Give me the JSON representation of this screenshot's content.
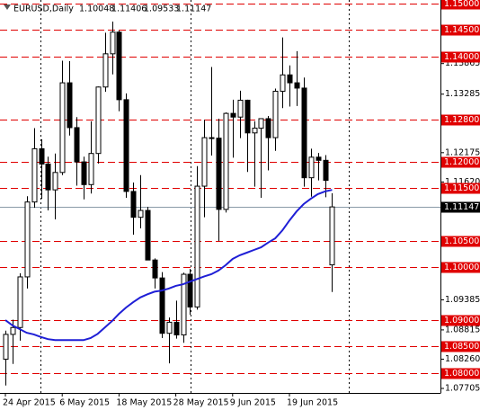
{
  "chart_data": {
    "type": "candlestick",
    "symbol": "EURUSD,Daily",
    "ohlc_header": [
      1.10048,
      1.11406,
      1.09533,
      1.11147
    ],
    "categories": [
      "24 Apr 2015",
      null,
      null,
      null,
      null,
      null,
      null,
      null,
      "6 May 2015",
      null,
      null,
      null,
      null,
      null,
      null,
      null,
      "18 May 2015",
      null,
      null,
      null,
      null,
      null,
      null,
      null,
      "28 May 2015",
      null,
      null,
      null,
      null,
      null,
      null,
      null,
      "9 Jun 2015",
      null,
      null,
      null,
      null,
      null,
      null,
      null,
      "19 Jun 2015",
      null,
      null,
      null,
      null,
      null,
      null
    ],
    "open": [
      1.0826,
      1.0873,
      1.0886,
      1.0982,
      1.1124,
      1.1225,
      1.1196,
      1.1147,
      1.118,
      1.135,
      1.1265,
      1.12,
      1.1157,
      1.1216,
      1.1342,
      1.1405,
      1.1446,
      1.1318,
      1.1144,
      1.1095,
      1.1108,
      1.1014,
      1.098,
      1.0875,
      1.0896,
      1.0872,
      1.0987,
      1.0925,
      1.1154,
      1.1246,
      1.1245,
      1.111,
      1.1292,
      1.1285,
      1.1317,
      1.1255,
      1.1264,
      1.1282,
      1.1246,
      1.1334,
      1.1365,
      1.135,
      1.134,
      1.117,
      1.1209,
      1.1203,
      1.10048
    ],
    "high": [
      1.088,
      1.0901,
      1.0989,
      1.1135,
      1.1264,
      1.1243,
      1.121,
      1.1216,
      1.1392,
      1.1391,
      1.1285,
      1.121,
      1.1277,
      1.1343,
      1.1445,
      1.1466,
      1.1449,
      1.133,
      1.1161,
      1.1175,
      1.1115,
      1.1017,
      1.0991,
      1.0905,
      1.0937,
      1.099,
      1.0997,
      1.1192,
      1.128,
      1.138,
      1.1282,
      1.1294,
      1.1318,
      1.1335,
      1.1318,
      1.1277,
      1.128,
      1.1287,
      1.1339,
      1.1436,
      1.1383,
      1.141,
      1.136,
      1.1225,
      1.1217,
      1.1213,
      1.11406
    ],
    "low": [
      1.0776,
      1.0817,
      1.0861,
      1.096,
      1.1113,
      1.113,
      1.1108,
      1.1091,
      1.1175,
      1.125,
      1.1155,
      1.1129,
      1.114,
      1.1197,
      1.1333,
      1.1366,
      1.1296,
      1.1132,
      1.1062,
      1.1074,
      1.1014,
      1.096,
      1.0866,
      1.0818,
      1.0865,
      1.0857,
      1.091,
      1.092,
      1.1095,
      1.1212,
      1.105,
      1.1104,
      1.1208,
      1.1245,
      1.1181,
      1.1153,
      1.1132,
      1.1184,
      1.1221,
      1.1302,
      1.1305,
      1.1306,
      1.1153,
      1.1134,
      1.1165,
      1.1133,
      1.09533
    ],
    "close": [
      1.0873,
      1.0886,
      1.0982,
      1.1124,
      1.1225,
      1.1196,
      1.1147,
      1.118,
      1.135,
      1.1265,
      1.12,
      1.1157,
      1.1216,
      1.1342,
      1.1405,
      1.1446,
      1.1318,
      1.1144,
      1.1095,
      1.1108,
      1.1014,
      1.098,
      1.0875,
      1.0896,
      1.0872,
      1.0987,
      1.0925,
      1.1154,
      1.1246,
      1.1245,
      1.111,
      1.1292,
      1.1285,
      1.1317,
      1.1255,
      1.1264,
      1.1282,
      1.1246,
      1.1334,
      1.1365,
      1.135,
      1.134,
      1.117,
      1.1209,
      1.1203,
      1.1165,
      1.11147
    ],
    "bull_color": "#ffffff",
    "bear_color": "#000000",
    "moving_average": {
      "color": "#1f1fd6",
      "values": [
        1.09,
        1.089,
        1.0883,
        1.0876,
        1.0873,
        1.0868,
        1.0864,
        1.0862,
        1.0862,
        1.0862,
        1.0862,
        1.0862,
        1.0866,
        1.0874,
        1.0886,
        1.0898,
        1.0912,
        1.0924,
        1.0934,
        1.0943,
        1.0949,
        1.0954,
        1.0956,
        1.096,
        1.0965,
        1.0968,
        1.0973,
        1.0978,
        1.0983,
        1.0987,
        1.0994,
        1.1004,
        1.1016,
        1.1023,
        1.1028,
        1.1033,
        1.1038,
        1.1047,
        1.1055,
        1.107,
        1.1089,
        1.1106,
        1.112,
        1.113,
        1.1139,
        1.1144,
        1.1147
      ]
    },
    "ylim": [
      1.0762,
      1.1507
    ],
    "yticks": [
      {
        "value": 1.13865,
        "label": "1.13865"
      },
      {
        "value": 1.13285,
        "label": "1.13285"
      },
      {
        "value": 1.12175,
        "label": "1.12175"
      },
      {
        "value": 1.1162,
        "label": "1.11620"
      },
      {
        "value": 1.09385,
        "label": "1.09385"
      },
      {
        "value": 1.08815,
        "label": "1.08815"
      },
      {
        "value": 1.0826,
        "label": "1.08260"
      },
      {
        "value": 1.07705,
        "label": "1.07705"
      }
    ],
    "level_ticks": [
      {
        "value": 1.15,
        "label": "1.15000"
      },
      {
        "value": 1.145,
        "label": "1.14500"
      },
      {
        "value": 1.14,
        "label": "1.14000"
      },
      {
        "value": 1.128,
        "label": "1.12800"
      },
      {
        "value": 1.12,
        "label": "1.12000"
      },
      {
        "value": 1.115,
        "label": "1.11500"
      },
      {
        "value": 1.105,
        "label": "1.10500"
      },
      {
        "value": 1.1,
        "label": "1.10000"
      },
      {
        "value": 1.09,
        "label": "1.09000"
      },
      {
        "value": 1.085,
        "label": "1.08500"
      },
      {
        "value": 1.08,
        "label": "1.08000"
      }
    ],
    "level_color": "#e00000",
    "current_price": {
      "value": 1.11147,
      "label": "1.11147"
    }
  }
}
